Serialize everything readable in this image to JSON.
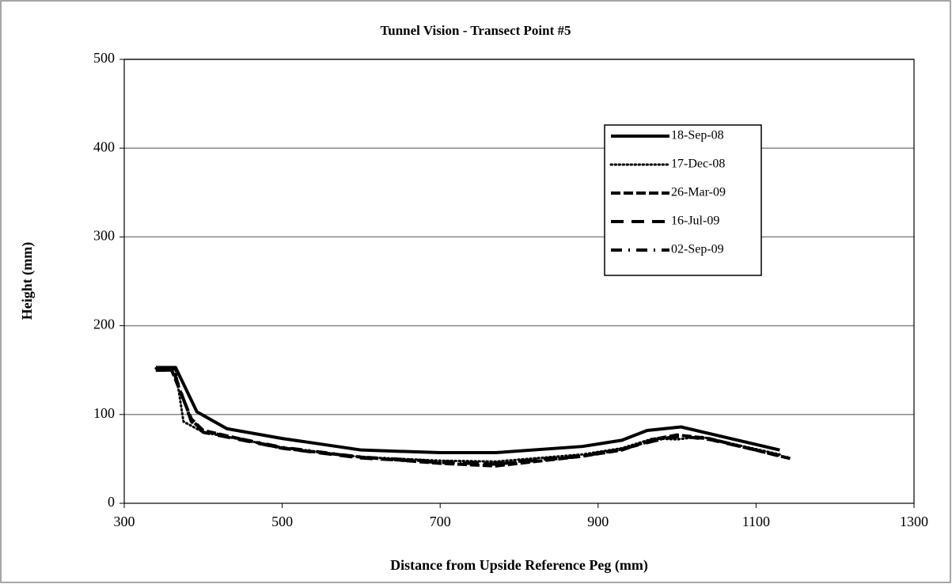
{
  "chart_data": {
    "type": "line",
    "title": "Tunnel Vision - Transect Point #5",
    "x_label": "Distance from Upside Reference Peg (mm)",
    "y_label": "Height (mm)",
    "xlim": [
      300,
      1300
    ],
    "xticks": [
      300,
      500,
      700,
      900,
      1100,
      1300
    ],
    "ylim": [
      0,
      500
    ],
    "yticks": [
      0,
      100,
      200,
      300,
      400,
      500
    ],
    "grid": true,
    "legend": "upper right",
    "series": [
      {
        "name": "18-Sep-08",
        "color": "#000000",
        "dash": "solid",
        "x": [
          340,
          365,
          392,
          430,
          500,
          600,
          700,
          770,
          880,
          930,
          962,
          1005,
          1130
        ],
        "values": [
          153,
          153,
          103,
          84,
          73,
          60,
          57,
          57,
          64,
          71,
          82,
          86,
          60
        ]
      },
      {
        "name": "17-Dec-08",
        "color": "#000000",
        "dash": "dotted",
        "x": [
          340,
          365,
          375,
          400,
          500,
          600,
          700,
          770,
          880,
          930,
          970,
          1000,
          1030,
          1130
        ],
        "values": [
          152,
          150,
          92,
          80,
          63,
          52,
          48,
          47,
          55,
          62,
          73,
          72,
          75,
          55
        ]
      },
      {
        "name": "26-Mar-09",
        "color": "#000000",
        "dash": "dashed",
        "x": [
          340,
          360,
          385,
          400,
          500,
          600,
          700,
          770,
          880,
          930,
          970,
          1000,
          1040,
          1145
        ],
        "values": [
          150,
          150,
          95,
          82,
          62,
          52,
          45,
          42,
          53,
          60,
          72,
          77,
          73,
          50
        ]
      },
      {
        "name": "16-Jul-09",
        "color": "#000000",
        "dash": "longdash",
        "x": [
          340,
          362,
          366,
          385,
          400,
          500,
          600,
          700,
          770,
          880,
          930,
          970,
          1000,
          1040,
          1140
        ],
        "values": [
          150,
          150,
          140,
          92,
          80,
          62,
          51,
          46,
          44,
          53,
          61,
          70,
          76,
          72,
          52
        ]
      },
      {
        "name": "02-Sep-09",
        "color": "#000000",
        "dash": "dashdot",
        "x": [
          340,
          362,
          366,
          385,
          400,
          500,
          600,
          700,
          770,
          880,
          930,
          970,
          1000,
          1040,
          1140
        ],
        "values": [
          151,
          151,
          138,
          94,
          81,
          63,
          52,
          47,
          45,
          54,
          61,
          71,
          75,
          73,
          51
        ]
      }
    ]
  }
}
